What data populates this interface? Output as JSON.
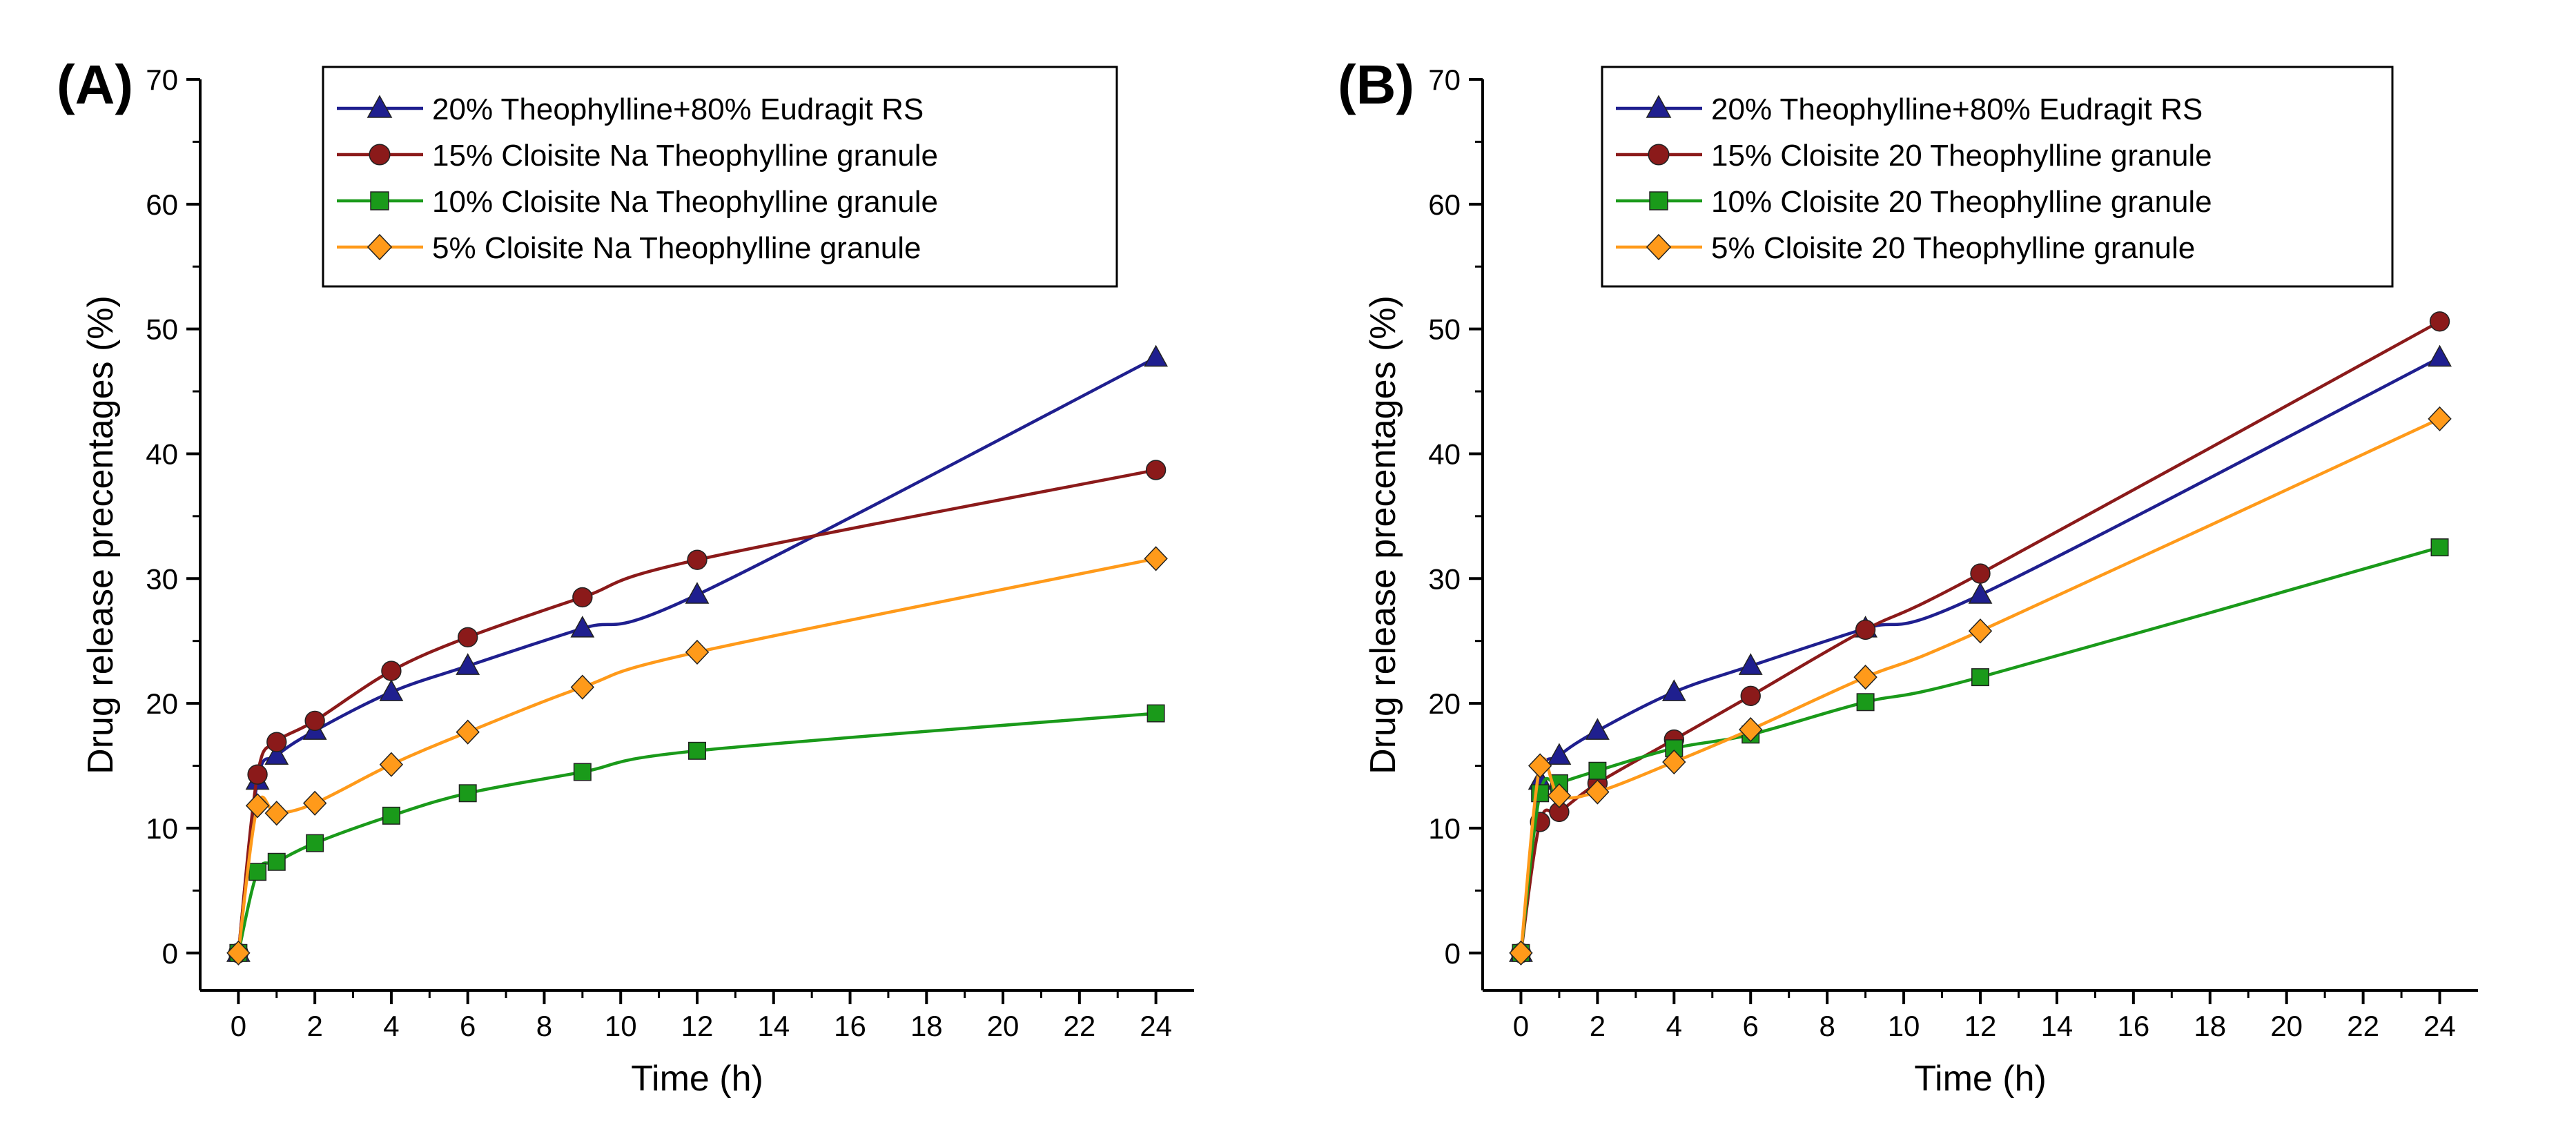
{
  "chart_data": [
    {
      "type": "line",
      "panel_label": "(A)",
      "xlabel": "Time (h)",
      "ylabel": "Drug release precentages (%)",
      "xlim": [
        -1,
        25
      ],
      "ylim": [
        -3,
        70
      ],
      "xticks": [
        "0",
        "2",
        "4",
        "6",
        "8",
        "10",
        "12",
        "14",
        "16",
        "18",
        "20",
        "22",
        "24"
      ],
      "yticks": [
        "0",
        "10",
        "20",
        "30",
        "40",
        "50",
        "60",
        "70"
      ],
      "legend_position": "top-center",
      "series": [
        {
          "name": "20% Theophylline+80% Eudragit RS",
          "color": "#1f1f8f",
          "marker": "triangle",
          "x": [
            0,
            0.5,
            1,
            2,
            4,
            6,
            9,
            12,
            24
          ],
          "y": [
            0,
            13.8,
            15.8,
            17.8,
            20.9,
            23.0,
            26.0,
            28.7,
            47.7
          ]
        },
        {
          "name": "15% Cloisite Na Theophylline granule",
          "color": "#8b1a1a",
          "marker": "circle",
          "x": [
            0,
            0.5,
            1,
            2,
            4,
            6,
            9,
            12,
            24
          ],
          "y": [
            0,
            14.3,
            16.9,
            18.6,
            22.6,
            25.3,
            28.5,
            31.5,
            38.7
          ]
        },
        {
          "name": "10% Cloisite Na Theophylline granule",
          "color": "#1a9a1a",
          "marker": "square",
          "x": [
            0,
            0.5,
            1,
            2,
            4,
            6,
            9,
            12,
            24
          ],
          "y": [
            0,
            6.5,
            7.3,
            8.8,
            11.0,
            12.8,
            14.5,
            16.2,
            19.2
          ]
        },
        {
          "name": "5% Cloisite Na Theophylline granule",
          "color": "#ff9a1a",
          "marker": "diamond",
          "x": [
            0,
            0.5,
            1,
            2,
            4,
            6,
            9,
            12,
            24
          ],
          "y": [
            0,
            11.8,
            11.2,
            12.0,
            15.1,
            17.7,
            21.3,
            24.1,
            31.6
          ]
        }
      ]
    },
    {
      "type": "line",
      "panel_label": "(B)",
      "xlabel": "Time (h)",
      "ylabel": "Drug release precentages (%)",
      "xlim": [
        -1,
        25
      ],
      "ylim": [
        -3,
        70
      ],
      "xticks": [
        "0",
        "2",
        "4",
        "6",
        "8",
        "10",
        "12",
        "14",
        "16",
        "18",
        "20",
        "22",
        "24"
      ],
      "yticks": [
        "0",
        "10",
        "20",
        "30",
        "40",
        "50",
        "60",
        "70"
      ],
      "legend_position": "top-center",
      "series": [
        {
          "name": "20% Theophylline+80% Eudragit RS",
          "color": "#1f1f8f",
          "marker": "triangle",
          "x": [
            0,
            0.5,
            1,
            2,
            4,
            6,
            9,
            12,
            24
          ],
          "y": [
            0,
            13.8,
            15.8,
            17.8,
            20.9,
            23.0,
            26.0,
            28.7,
            47.7
          ]
        },
        {
          "name": "15% Cloisite 20 Theophylline granule",
          "color": "#8b1a1a",
          "marker": "circle",
          "x": [
            0,
            0.5,
            1,
            2,
            4,
            6,
            9,
            12,
            24
          ],
          "y": [
            0,
            10.5,
            11.3,
            13.6,
            17.1,
            20.6,
            25.9,
            30.4,
            50.6
          ]
        },
        {
          "name": "10% Cloisite 20 Theophylline granule",
          "color": "#1a9a1a",
          "marker": "square",
          "x": [
            0,
            0.5,
            1,
            2,
            4,
            6,
            9,
            12,
            24
          ],
          "y": [
            0,
            12.8,
            13.6,
            14.6,
            16.4,
            17.5,
            20.1,
            22.1,
            32.5
          ]
        },
        {
          "name": "5% Cloisite 20 Theophylline granule",
          "color": "#ff9a1a",
          "marker": "diamond",
          "x": [
            0,
            0.5,
            1,
            2,
            4,
            6,
            9,
            12,
            24
          ],
          "y": [
            0,
            15.0,
            12.6,
            12.9,
            15.3,
            17.9,
            22.1,
            25.8,
            42.8
          ]
        }
      ]
    }
  ]
}
